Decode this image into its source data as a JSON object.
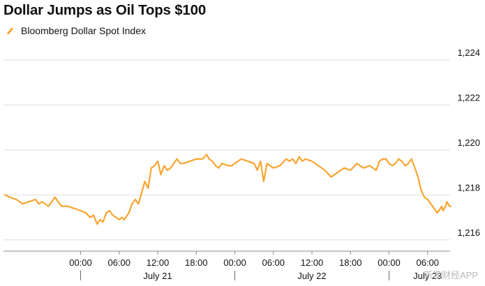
{
  "watermark": "新浪财经APP",
  "chart_data": {
    "type": "line",
    "title": "Dollar Jumps as Oil Tops $100",
    "legend_position": "top-left",
    "grid": true,
    "colors": {
      "series": "#F7A531",
      "grid": "#dddddd",
      "axis": "#888888"
    },
    "xlabel": "",
    "ylabel": "",
    "x_unit": "hours from July 20 00:00",
    "x_range": [
      12,
      81.5
    ],
    "ylim": [
      1215.5,
      1224.5
    ],
    "y_ticks": [
      1216,
      1218,
      1220,
      1222,
      1224
    ],
    "y_tick_labels": [
      "1,216",
      "1,218",
      "1,220",
      "1,222",
      "1,224"
    ],
    "x_ticks": [
      {
        "x": 24,
        "label": "00:00"
      },
      {
        "x": 30,
        "label": "06:00"
      },
      {
        "x": 36,
        "label": "12:00"
      },
      {
        "x": 42,
        "label": "18:00"
      },
      {
        "x": 48,
        "label": "00:00"
      },
      {
        "x": 54,
        "label": "06:00"
      },
      {
        "x": 60,
        "label": "12:00"
      },
      {
        "x": 66,
        "label": "18:00"
      },
      {
        "x": 72,
        "label": "00:00"
      },
      {
        "x": 78,
        "label": "06:00"
      }
    ],
    "day_labels": [
      {
        "x": 36,
        "label": "July 21"
      },
      {
        "x": 60,
        "label": "July 22"
      },
      {
        "x": 78,
        "label": "July 23"
      }
    ],
    "day_separators": [
      24,
      48,
      72
    ],
    "series": [
      {
        "name": "Bloomberg Dollar Spot Index",
        "x": [
          12.2,
          13,
          14,
          15,
          16,
          17,
          17.5,
          18,
          19,
          20,
          21,
          22,
          23,
          24,
          24.8,
          25.5,
          26,
          26.6,
          27,
          27.5,
          28,
          28.5,
          29,
          29.5,
          30,
          30.4,
          30.8,
          31.5,
          32,
          32.5,
          33,
          33.5,
          34,
          34.5,
          35,
          35.5,
          36,
          36.5,
          37,
          37.5,
          38,
          38.5,
          39,
          39.5,
          40,
          41,
          42,
          43,
          43.6,
          44,
          44.5,
          45,
          45.5,
          46,
          47,
          47.5,
          48,
          49,
          50,
          51,
          51.5,
          52,
          52.5,
          53,
          53.5,
          54,
          55,
          56,
          56.5,
          57,
          57.5,
          58,
          58.5,
          59,
          60,
          61,
          62,
          63,
          64,
          65,
          66,
          67,
          68,
          69,
          70,
          70.5,
          71,
          71.5,
          72,
          72.5,
          73,
          73.5,
          74,
          74.5,
          75,
          75.5,
          76,
          76.5,
          77,
          77.5,
          78,
          78.5,
          79,
          79.5,
          80,
          80.2,
          80.4,
          80.6,
          80.8,
          81,
          81.2,
          81.4,
          81.6
        ],
        "values": [
          1218.0,
          1217.9,
          1217.8,
          1217.6,
          1217.7,
          1217.8,
          1217.6,
          1217.7,
          1217.5,
          1217.9,
          1217.5,
          1217.5,
          1217.4,
          1217.3,
          1217.2,
          1217.0,
          1217.1,
          1216.7,
          1216.9,
          1216.8,
          1217.2,
          1217.3,
          1217.1,
          1217.0,
          1216.9,
          1217.0,
          1216.9,
          1217.2,
          1217.6,
          1217.8,
          1217.6,
          1218.1,
          1218.6,
          1218.3,
          1219.2,
          1219.3,
          1219.5,
          1218.9,
          1219.3,
          1219.1,
          1219.2,
          1219.4,
          1219.6,
          1219.4,
          1219.4,
          1219.5,
          1219.6,
          1219.6,
          1219.8,
          1219.6,
          1219.5,
          1219.3,
          1219.2,
          1219.4,
          1219.3,
          1219.3,
          1219.4,
          1219.6,
          1219.5,
          1219.4,
          1219.1,
          1219.5,
          1218.6,
          1219.4,
          1219.3,
          1219.2,
          1219.3,
          1219.6,
          1219.5,
          1219.6,
          1219.4,
          1219.7,
          1219.5,
          1219.6,
          1219.5,
          1219.3,
          1219.1,
          1218.8,
          1219.0,
          1219.2,
          1219.1,
          1219.4,
          1219.2,
          1219.3,
          1219.1,
          1219.5,
          1219.6,
          1219.6,
          1219.4,
          1219.3,
          1219.4,
          1219.6,
          1219.5,
          1219.3,
          1219.4,
          1219.6,
          1219.2,
          1218.8,
          1218.2,
          1217.9,
          1217.8,
          1217.6,
          1217.4,
          1217.2,
          1217.4,
          1217.5,
          1217.3,
          1217.4,
          1217.5,
          1217.7,
          1217.6,
          1217.5,
          1217.5
        ]
      }
    ]
  }
}
